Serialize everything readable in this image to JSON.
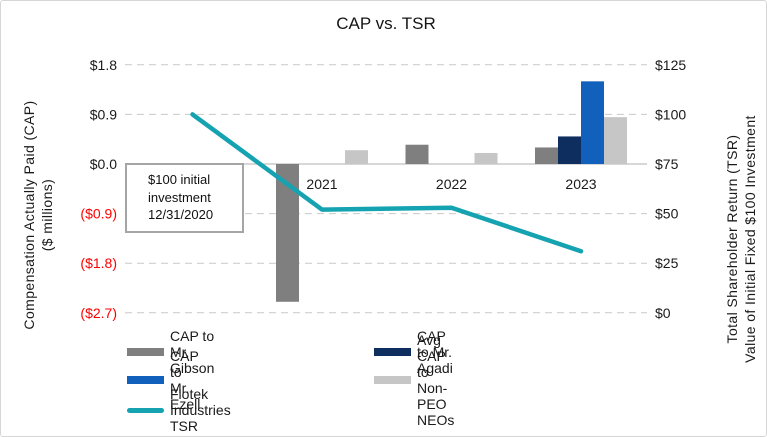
{
  "chart_data": {
    "type": "combo-bar-line",
    "title": "CAP vs. TSR",
    "categories": [
      "12/31/2020",
      "2021",
      "2022",
      "2023"
    ],
    "x_axis_labels": [
      "2021",
      "2022",
      "2023"
    ],
    "bar_series": [
      {
        "name": "CAP to Mr. Gibson",
        "color": "#7F7F7F",
        "axis": "left",
        "values": [
          null,
          -2.5,
          0.35,
          0.3
        ]
      },
      {
        "name": "CAP to Mr. Agadi",
        "color": "#0D2E5F",
        "axis": "left",
        "values": [
          null,
          null,
          null,
          0.5
        ]
      },
      {
        "name": "CAP to Mr. Ezell",
        "color": "#1160BC",
        "axis": "left",
        "values": [
          null,
          null,
          null,
          1.5
        ]
      },
      {
        "name": "Avg CAP to Non-PEO NEOs",
        "color": "#C6C6C6",
        "axis": "left",
        "values": [
          null,
          0.25,
          0.2,
          0.85
        ]
      }
    ],
    "line_series": [
      {
        "name": "Flotek Industries TSR",
        "color": "#15A3B1",
        "axis": "right",
        "values": [
          100,
          52,
          53,
          31
        ]
      }
    ],
    "left_axis": {
      "title_line1": "Compensation Actually Paid (CAP)",
      "title_line2": "($ millions)",
      "tick_labels": [
        "$1.8",
        "$0.9",
        "$0.0",
        "($0.9)",
        "($1.8)",
        "($2.7)"
      ],
      "tick_values": [
        1.8,
        0.9,
        0.0,
        -0.9,
        -1.8,
        -2.7
      ],
      "range": [
        -2.7,
        1.8
      ],
      "label_color": "#1A1A1A",
      "negative_label_color": "#FF0000"
    },
    "right_axis": {
      "title_line1": "Total Shareholder Return (TSR)",
      "title_line2": "Value of Initial Fixed $100 Investment",
      "tick_labels": [
        "$125",
        "$100",
        "$75",
        "$50",
        "$25",
        "$0"
      ],
      "tick_values": [
        125,
        100,
        75,
        50,
        25,
        0
      ],
      "range": [
        0,
        125
      ],
      "label_color": "#1A1A1A"
    },
    "gridlines": "dashed-horizontal",
    "annotation": {
      "lines": [
        "$100 initial",
        "investment",
        "12/31/2020"
      ]
    },
    "legend": {
      "items": [
        {
          "label": "CAP to Mr. Gibson",
          "color": "#7F7F7F",
          "marker": "bar"
        },
        {
          "label": "CAP to Mr. Agadi",
          "color": "#0D2E5F",
          "marker": "bar"
        },
        {
          "label": "CAP to Mr. Ezell",
          "color": "#1160BC",
          "marker": "bar"
        },
        {
          "label": "Avg CAP to Non-PEO NEOs",
          "color": "#C6C6C6",
          "marker": "bar"
        },
        {
          "label": "Flotek Industries TSR",
          "color": "#15A3B1",
          "marker": "line"
        }
      ]
    },
    "colors": {
      "grid": "#C9C9C9",
      "axis_line": "#BFBFBF",
      "category_label": "#1A1A1A"
    }
  }
}
